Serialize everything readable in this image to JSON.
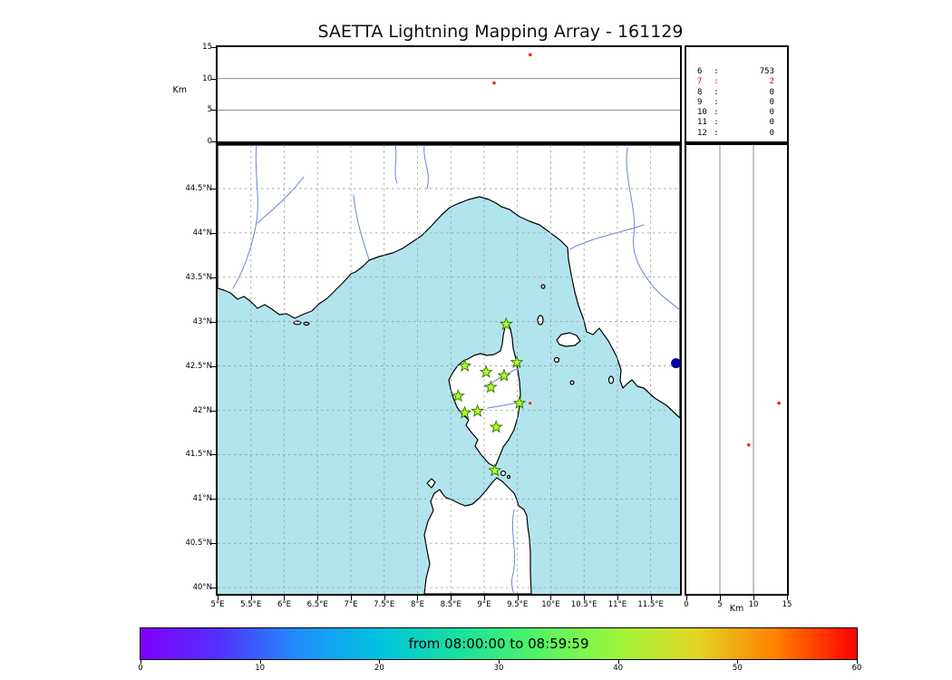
{
  "title": "SAETTA Lightning Mapping Array - 161129",
  "altitude_time_panel": {
    "ylabel": "Km",
    "yticks": [
      {
        "label": "15",
        "km": 15
      },
      {
        "label": "10",
        "km": 10
      },
      {
        "label": "5",
        "km": 5
      },
      {
        "label": "0",
        "km": 0
      }
    ]
  },
  "station_count_panel": {
    "separator": ":",
    "rows": [
      {
        "stations": "6",
        "count": "753",
        "highlight": false
      },
      {
        "stations": "7",
        "count": "2",
        "highlight": true
      },
      {
        "stations": "8",
        "count": "0",
        "highlight": false
      },
      {
        "stations": "9",
        "count": "0",
        "highlight": false
      },
      {
        "stations": "10",
        "count": "0",
        "highlight": false
      },
      {
        "stations": "11",
        "count": "0",
        "highlight": false
      },
      {
        "stations": "12",
        "count": "0",
        "highlight": false
      }
    ]
  },
  "map_panel": {
    "lat_ticks": [
      {
        "label": "44.5°N",
        "value": 44.5
      },
      {
        "label": "44°N",
        "value": 44.0
      },
      {
        "label": "43.5°N",
        "value": 43.5
      },
      {
        "label": "43°N",
        "value": 43.0
      },
      {
        "label": "42.5°N",
        "value": 42.5
      },
      {
        "label": "42°N",
        "value": 42.0
      },
      {
        "label": "41.5°N",
        "value": 41.5
      },
      {
        "label": "41°N",
        "value": 41.0
      },
      {
        "label": "40.5°N",
        "value": 40.5
      },
      {
        "label": "40°N",
        "value": 40.0
      }
    ],
    "lon_ticks": [
      {
        "label": "5°E",
        "value": 5.0
      },
      {
        "label": "5.5°E",
        "value": 5.5
      },
      {
        "label": "6°E",
        "value": 6.0
      },
      {
        "label": "6.5°E",
        "value": 6.5
      },
      {
        "label": "7°E",
        "value": 7.0
      },
      {
        "label": "7.5°E",
        "value": 7.5
      },
      {
        "label": "8°E",
        "value": 8.0
      },
      {
        "label": "8.5°E",
        "value": 8.5
      },
      {
        "label": "9°E",
        "value": 9.0
      },
      {
        "label": "9.5°E",
        "value": 9.5
      },
      {
        "label": "10°E",
        "value": 10.0
      },
      {
        "label": "10.5°E",
        "value": 10.5
      },
      {
        "label": "11°E",
        "value": 11.0
      },
      {
        "label": "11.5°E",
        "value": 11.5
      }
    ]
  },
  "altitude_hist_panel": {
    "xlabel": "Km",
    "xticks": [
      {
        "label": "0",
        "km": 0
      },
      {
        "label": "5",
        "km": 5
      },
      {
        "label": "10",
        "km": 10
      },
      {
        "label": "15",
        "km": 15
      }
    ]
  },
  "colorbar": {
    "label": "from 08:00:00 to 08:59:59",
    "ticks": [
      "0",
      "10",
      "20",
      "30",
      "40",
      "50",
      "60"
    ],
    "gradient": [
      "#8000ff",
      "#5232fd",
      "#1e90fa",
      "#00c3e0",
      "#18e0a0",
      "#52f564",
      "#9ff53c",
      "#e3d522",
      "#ff7e00",
      "#ff0000"
    ]
  },
  "chart_data": {
    "type": "scatter",
    "title": "SAETTA Lightning Mapping Array - 161129",
    "date": "161129",
    "time_window": {
      "from": "08:00:00",
      "to": "08:59:59"
    },
    "projection": {
      "lon_range": [
        5.0,
        11.94
      ],
      "lat_range": [
        39.93,
        44.99
      ]
    },
    "altitude_km_range": [
      0,
      15
    ],
    "colorbar_minutes_range": [
      0,
      60
    ],
    "station_count_histogram": {
      "6": 753,
      "7": 2,
      "8": 0,
      "9": 0,
      "10": 0,
      "11": 0,
      "12": 0
    },
    "lma_stations_lon_lat": [
      [
        9.33,
        42.97
      ],
      [
        8.71,
        42.5
      ],
      [
        9.03,
        42.43
      ],
      [
        9.3,
        42.39
      ],
      [
        9.49,
        42.54
      ],
      [
        9.1,
        42.26
      ],
      [
        8.61,
        42.16
      ],
      [
        8.71,
        41.97
      ],
      [
        8.9,
        41.99
      ],
      [
        9.53,
        42.08
      ],
      [
        9.18,
        41.81
      ],
      [
        9.16,
        41.32
      ]
    ],
    "lightning_sources": [
      {
        "lon": 9.69,
        "lat": 42.08,
        "alt_km": 13.8,
        "time_frac": 0.676
      },
      {
        "lon": null,
        "lat": 41.61,
        "alt_km": 9.3,
        "time_frac": 0.598
      }
    ],
    "blue_marker_lon_lat": [
      11.88,
      42.53
    ],
    "colors": {
      "sea": "#b2e4ee",
      "land": "#ffffff",
      "station": "#adff2f",
      "station_edge": "#3f7d00",
      "source": "#ff2000",
      "blue_marker": "#0000a0",
      "highlight_text": "#ff0000"
    }
  }
}
